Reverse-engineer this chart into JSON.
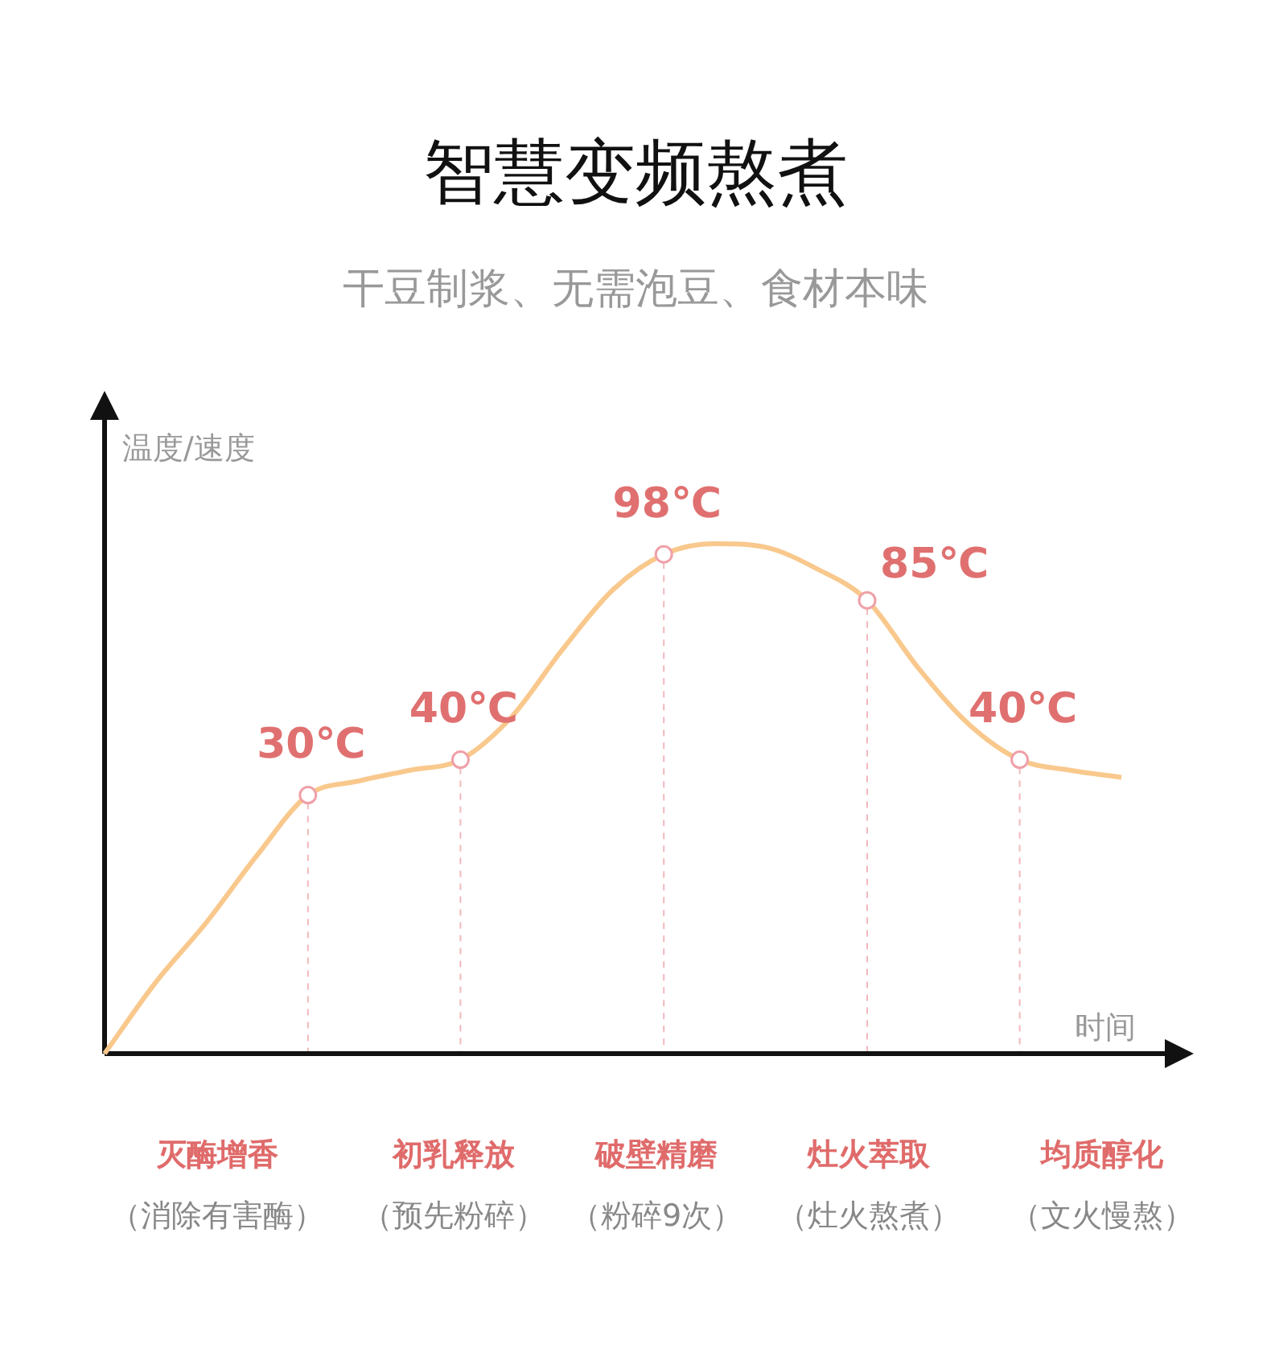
{
  "chart_data": {
    "type": "line",
    "title": "智慧变频熬煮",
    "subtitle": "干豆制浆、无需泡豆、食材本味",
    "xlabel": "时间",
    "ylabel": "温度/速度",
    "categories": [
      null,
      null,
      null,
      null,
      null,
      null,
      null,
      null,
      null,
      null,
      null,
      null,
      null,
      null,
      null,
      null,
      null,
      null,
      null,
      null,
      null
    ],
    "series": [
      {
        "color": "#f9c88c",
        "values": [
          -43,
          -23,
          -6,
          13,
          30,
          34,
          37,
          40,
          52,
          71,
          88,
          98,
          101,
          100,
          94,
          85,
          66,
          50,
          40,
          37,
          35
        ],
        "value_labels": [
          null,
          null,
          null,
          null,
          "30℃",
          null,
          null,
          "40℃",
          null,
          null,
          null,
          "98℃",
          null,
          null,
          null,
          "85℃",
          null,
          null,
          "40℃",
          null,
          null
        ]
      }
    ],
    "annotations": [
      "灭酶增香",
      "初乳释放",
      "破壁精磨",
      "灶火萃取",
      "均质醇化",
      "（消除有害酶）",
      "（预先粉碎）",
      "（粉碎9次）",
      "（灶火熬煮）",
      "（文火慢熬）"
    ]
  }
}
